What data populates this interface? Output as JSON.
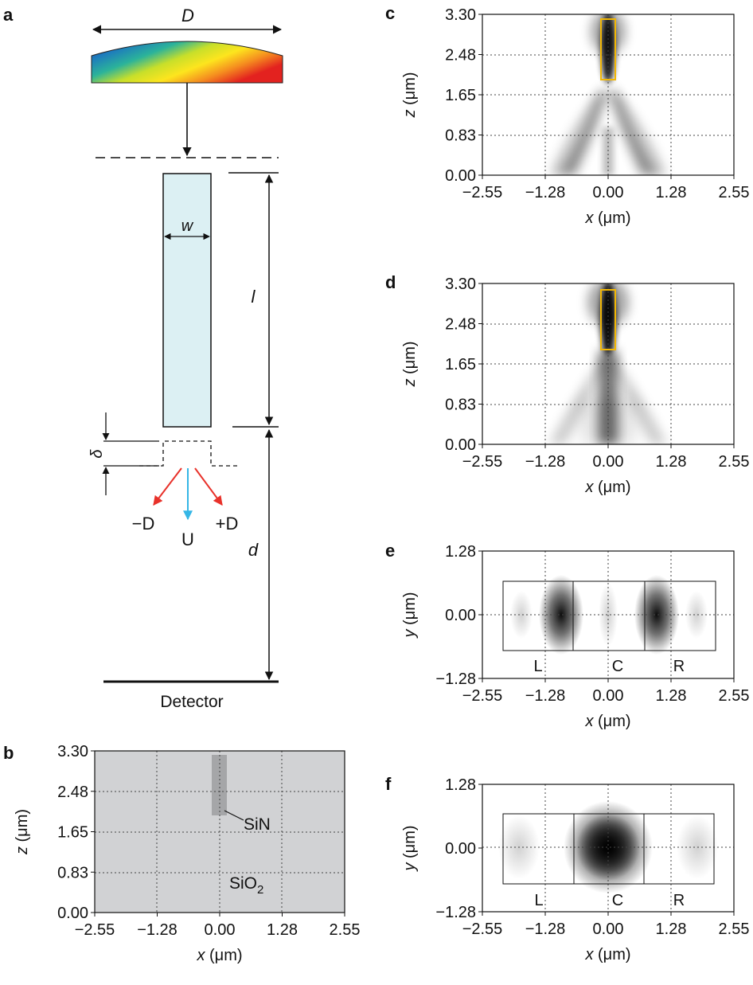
{
  "panels": {
    "a": {
      "letter": "a",
      "lens_label": "D",
      "width_label": "w",
      "length_label": "l",
      "offset_label": "δ",
      "distance_label": "d",
      "mode_minus_D": "−D",
      "mode_U": "U",
      "mode_plus_D": "+D",
      "detector_label": "Detector",
      "colors": {
        "waveguide_fill": "#dcf0f3",
        "red_arrow": "#e8312a",
        "blue_arrow": "#35b6e6"
      }
    },
    "b": {
      "letter": "b",
      "sin_label": "SiN",
      "sio2_label_main": "SiO",
      "sio2_label_sub": "2",
      "colors": {
        "substrate": "#d1d2d4",
        "core": "#a5a6a8"
      }
    },
    "c": {
      "letter": "c"
    },
    "d": {
      "letter": "d"
    },
    "e": {
      "letter": "e",
      "region_labels": [
        "L",
        "C",
        "R"
      ]
    },
    "f": {
      "letter": "f",
      "region_labels": [
        "L",
        "C",
        "R"
      ]
    }
  },
  "axes": {
    "x_ticks": [
      "−2.55",
      "−1.28",
      "0.00",
      "1.28",
      "2.55"
    ],
    "z_ticks": [
      "3.30",
      "2.48",
      "1.65",
      "0.83",
      "0.00"
    ],
    "y_ticks": [
      "1.28",
      "0.00",
      "−1.28"
    ],
    "x_label_var": "x",
    "z_label_var": "z",
    "y_label_var": "y",
    "unit": " (μm)"
  },
  "colors": {
    "highlight_box": "#f2b705"
  }
}
